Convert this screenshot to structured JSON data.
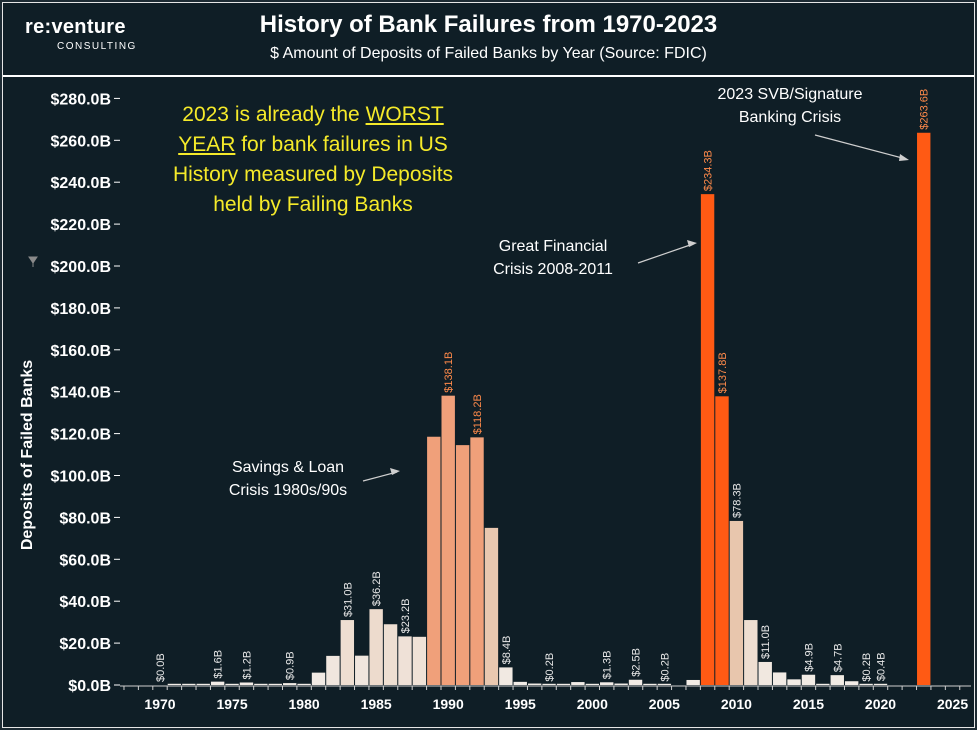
{
  "logo": {
    "main": "re:venture",
    "sub": "CONSULTING"
  },
  "header": {
    "title": "History of Bank Failures from 1970-2023",
    "subtitle": "$ Amount of Deposits of Failed Banks by Year (Source: FDIC)"
  },
  "annotations": {
    "worst_pre": "2023 is already the ",
    "worst_u": "WORST YEAR",
    "worst_post": " for bank failures in US History measured by Deposits held by Failing Banks",
    "svb": [
      "2023 SVB/Signature",
      "Banking Crisis"
    ],
    "gfc": [
      "Great Financial",
      "Crisis 2008-2011"
    ],
    "snl": [
      "Savings & Loan",
      "Crisis 1980s/90s"
    ]
  },
  "colors": {
    "background": "#0f1e26",
    "crisis_orange": "#ff5a14",
    "snl_peach": "#f0a07a",
    "light_bar": "#f2ede8",
    "label_orange": "#ff8a4a",
    "label_light": "#e8e8e8"
  },
  "chart_data": {
    "type": "bar",
    "title": "History of Bank Failures from 1970-2023",
    "subtitle": "$ Amount of Deposits of Failed Banks by Year (Source: FDIC)",
    "ylabel": "Deposits of Failed Banks",
    "xlabel": "",
    "ylim": [
      0,
      290
    ],
    "yticks": [
      0,
      20,
      40,
      60,
      80,
      100,
      120,
      140,
      160,
      180,
      200,
      220,
      240,
      260,
      280
    ],
    "ytick_labels": [
      "$0.0B",
      "$20.0B",
      "$40.0B",
      "$60.0B",
      "$80.0B",
      "$100.0B",
      "$120.0B",
      "$140.0B",
      "$160.0B",
      "$180.0B",
      "$200.0B",
      "$220.0B",
      "$240.0B",
      "$260.0B",
      "$280.0B"
    ],
    "xticks": [
      1970,
      1975,
      1980,
      1985,
      1990,
      1995,
      2000,
      2005,
      2010,
      2015,
      2020,
      2025
    ],
    "grid": false,
    "series": [
      {
        "x": [
          1970,
          1971,
          1972,
          1973,
          1974,
          1975,
          1976,
          1977,
          1978,
          1979,
          1980,
          1981,
          1982,
          1983,
          1984,
          1985,
          1986,
          1987,
          1988,
          1989,
          1990,
          1991,
          1992,
          1993,
          1994,
          1995,
          1996,
          1997,
          1998,
          1999,
          2000,
          2001,
          2002,
          2003,
          2004,
          2005,
          2006,
          2007,
          2008,
          2009,
          2010,
          2011,
          2012,
          2013,
          2014,
          2015,
          2016,
          2017,
          2018,
          2019,
          2020,
          2021,
          2022,
          2023
        ],
        "values": [
          0.0,
          0.1,
          0.1,
          0.3,
          1.6,
          0.3,
          1.2,
          0.2,
          0.2,
          0.9,
          0.2,
          5.9,
          13.9,
          31.0,
          14.0,
          36.2,
          29.0,
          23.2,
          23.0,
          118.5,
          138.1,
          114.5,
          118.2,
          75.0,
          8.4,
          1.5,
          0.7,
          0.2,
          0.3,
          1.4,
          0.4,
          1.3,
          0.7,
          2.5,
          0.2,
          0.2,
          0.0,
          2.4,
          234.3,
          137.8,
          78.3,
          31.0,
          11.0,
          6.0,
          2.7,
          4.9,
          0.3,
          4.7,
          1.8,
          0.2,
          0.4,
          0.0,
          0.0,
          263.6
        ],
        "groups": [
          "other",
          "other",
          "other",
          "other",
          "other",
          "other",
          "other",
          "other",
          "other",
          "other",
          "other",
          "other",
          "other",
          "other",
          "other",
          "other",
          "other",
          "other",
          "other",
          "snl",
          "snl",
          "snl",
          "snl",
          "other",
          "other",
          "other",
          "other",
          "other",
          "other",
          "other",
          "other",
          "other",
          "other",
          "other",
          "other",
          "other",
          "other",
          "other",
          "crisis",
          "crisis",
          "other",
          "other",
          "other",
          "other",
          "other",
          "other",
          "other",
          "other",
          "other",
          "other",
          "other",
          "other",
          "other",
          "crisis"
        ]
      }
    ],
    "data_labels": [
      {
        "x": 1970,
        "text": "$0.0B"
      },
      {
        "x": 1974,
        "text": "$1.6B"
      },
      {
        "x": 1976,
        "text": "$1.2B"
      },
      {
        "x": 1979,
        "text": "$0.9B"
      },
      {
        "x": 1983,
        "text": "$31.0B"
      },
      {
        "x": 1985,
        "text": "$36.2B"
      },
      {
        "x": 1987,
        "text": "$23.2B"
      },
      {
        "x": 1990,
        "text": "$138.1B"
      },
      {
        "x": 1992,
        "text": "$118.2B"
      },
      {
        "x": 1994,
        "text": "$8.4B"
      },
      {
        "x": 1997,
        "text": "$0.2B"
      },
      {
        "x": 2001,
        "text": "$1.3B"
      },
      {
        "x": 2003,
        "text": "$2.5B"
      },
      {
        "x": 2005,
        "text": "$0.2B"
      },
      {
        "x": 2008,
        "text": "$234.3B"
      },
      {
        "x": 2009,
        "text": "$137.8B"
      },
      {
        "x": 2010,
        "text": "$78.3B"
      },
      {
        "x": 2012,
        "text": "$11.0B"
      },
      {
        "x": 2015,
        "text": "$4.9B"
      },
      {
        "x": 2017,
        "text": "$4.7B"
      },
      {
        "x": 2019,
        "text": "$0.2B"
      },
      {
        "x": 2020,
        "text": "$0.4B"
      },
      {
        "x": 2023,
        "text": "$263.6B"
      }
    ]
  }
}
